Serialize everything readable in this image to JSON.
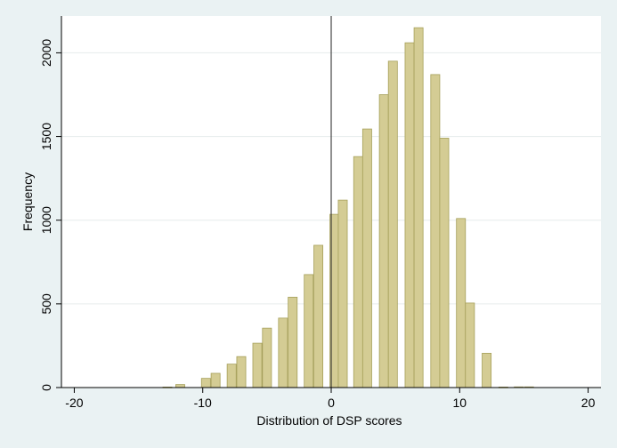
{
  "chart_data": {
    "type": "bar",
    "xlabel": "Distribution of DSP scores",
    "ylabel": "Frequency",
    "xlim": [
      -21,
      21
    ],
    "ylim": [
      0,
      2220
    ],
    "x_ticks": [
      -20,
      -10,
      0,
      10,
      20
    ],
    "y_ticks": [
      0,
      500,
      1000,
      1500,
      2000
    ],
    "grid": "horizontal",
    "reference_line_x": 0,
    "bar_width": 0.7,
    "bar_fill": "#d4cc94",
    "bar_stroke": "#a6a05a",
    "bins": [
      {
        "x": -12.75,
        "y": 3
      },
      {
        "x": -11.75,
        "y": 18
      },
      {
        "x": -9.75,
        "y": 55
      },
      {
        "x": -9.0,
        "y": 85
      },
      {
        "x": -7.75,
        "y": 140
      },
      {
        "x": -7.0,
        "y": 185
      },
      {
        "x": -5.75,
        "y": 265
      },
      {
        "x": -5.0,
        "y": 355
      },
      {
        "x": -3.75,
        "y": 415
      },
      {
        "x": -3.0,
        "y": 540
      },
      {
        "x": -1.75,
        "y": 675
      },
      {
        "x": -1.0,
        "y": 850
      },
      {
        "x": 0.25,
        "y": 1035
      },
      {
        "x": 0.9,
        "y": 1120
      },
      {
        "x": 2.1,
        "y": 1380
      },
      {
        "x": 2.8,
        "y": 1545
      },
      {
        "x": 4.1,
        "y": 1750
      },
      {
        "x": 4.8,
        "y": 1950
      },
      {
        "x": 6.1,
        "y": 2060
      },
      {
        "x": 6.8,
        "y": 2150
      },
      {
        "x": 8.1,
        "y": 1870
      },
      {
        "x": 8.8,
        "y": 1490
      },
      {
        "x": 10.1,
        "y": 1010
      },
      {
        "x": 10.8,
        "y": 505
      },
      {
        "x": 12.1,
        "y": 205
      },
      {
        "x": 13.4,
        "y": 3
      },
      {
        "x": 14.6,
        "y": 4
      },
      {
        "x": 15.4,
        "y": 4
      }
    ]
  }
}
